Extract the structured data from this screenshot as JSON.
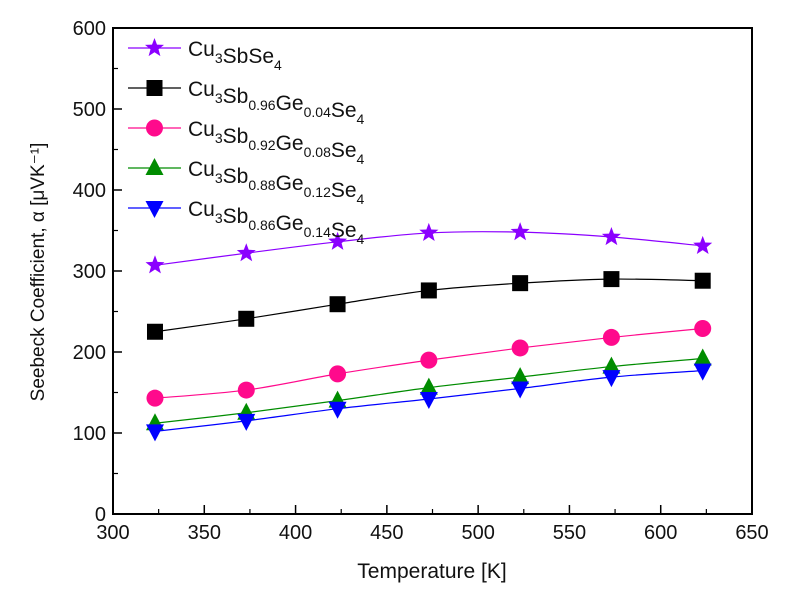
{
  "chart_data": {
    "type": "line",
    "title": "",
    "xlabel": "Temperature [K]",
    "ylabel": "Seebeck Coefficient, α [μVK⁻¹]",
    "xlim": [
      300,
      650
    ],
    "ylim": [
      0,
      600
    ],
    "xticks": [
      300,
      350,
      400,
      450,
      500,
      550,
      600,
      650
    ],
    "yticks": [
      0,
      100,
      200,
      300,
      400,
      500,
      600
    ],
    "grid": false,
    "legend_position": "top-left",
    "x": [
      323,
      373,
      423,
      473,
      523,
      573,
      623
    ],
    "series": [
      {
        "name": "Cu3SbSe4",
        "label_parts": [
          [
            "Cu",
            ""
          ],
          [
            "3",
            "sub"
          ],
          [
            "SbSe",
            ""
          ],
          [
            "4",
            "sub"
          ]
        ],
        "marker": "star",
        "color": "#8B00FF",
        "values": [
          307,
          322,
          336,
          347,
          348,
          342,
          331
        ]
      },
      {
        "name": "Cu3Sb0.96Ge0.04Se4",
        "label_parts": [
          [
            "Cu",
            ""
          ],
          [
            "3",
            "sub"
          ],
          [
            "Sb",
            ""
          ],
          [
            "0.96",
            "sub"
          ],
          [
            "Ge",
            ""
          ],
          [
            "0.04",
            "sub"
          ],
          [
            "Se",
            ""
          ],
          [
            "4",
            "sub"
          ]
        ],
        "marker": "square",
        "color": "#000000",
        "values": [
          225,
          241,
          259,
          276,
          285,
          290,
          288
        ]
      },
      {
        "name": "Cu3Sb0.92Ge0.08Se4",
        "label_parts": [
          [
            "Cu",
            ""
          ],
          [
            "3",
            "sub"
          ],
          [
            "Sb",
            ""
          ],
          [
            "0.92",
            "sub"
          ],
          [
            "Ge",
            ""
          ],
          [
            "0.08",
            "sub"
          ],
          [
            "Se",
            ""
          ],
          [
            "4",
            "sub"
          ]
        ],
        "marker": "circle",
        "color": "#FF0A8C",
        "values": [
          143,
          153,
          173,
          190,
          205,
          218,
          229
        ]
      },
      {
        "name": "Cu3Sb0.88Ge0.12Se4",
        "label_parts": [
          [
            "Cu",
            ""
          ],
          [
            "3",
            "sub"
          ],
          [
            "Sb",
            ""
          ],
          [
            "0.88",
            "sub"
          ],
          [
            "Ge",
            ""
          ],
          [
            "0.12",
            "sub"
          ],
          [
            "Se",
            ""
          ],
          [
            "4",
            "sub"
          ]
        ],
        "marker": "triangle-up",
        "color": "#008C00",
        "values": [
          112,
          125,
          140,
          156,
          169,
          182,
          192
        ]
      },
      {
        "name": "Cu3Sb0.86Ge0.14Se4",
        "label_parts": [
          [
            "Cu",
            ""
          ],
          [
            "3",
            "sub"
          ],
          [
            "Sb",
            ""
          ],
          [
            "0.86",
            "sub"
          ],
          [
            "Ge",
            ""
          ],
          [
            "0.14",
            "sub"
          ],
          [
            "Se",
            ""
          ],
          [
            "4",
            "sub"
          ]
        ],
        "marker": "triangle-down",
        "color": "#0000FF",
        "values": [
          102,
          115,
          130,
          142,
          155,
          169,
          177
        ]
      }
    ]
  }
}
